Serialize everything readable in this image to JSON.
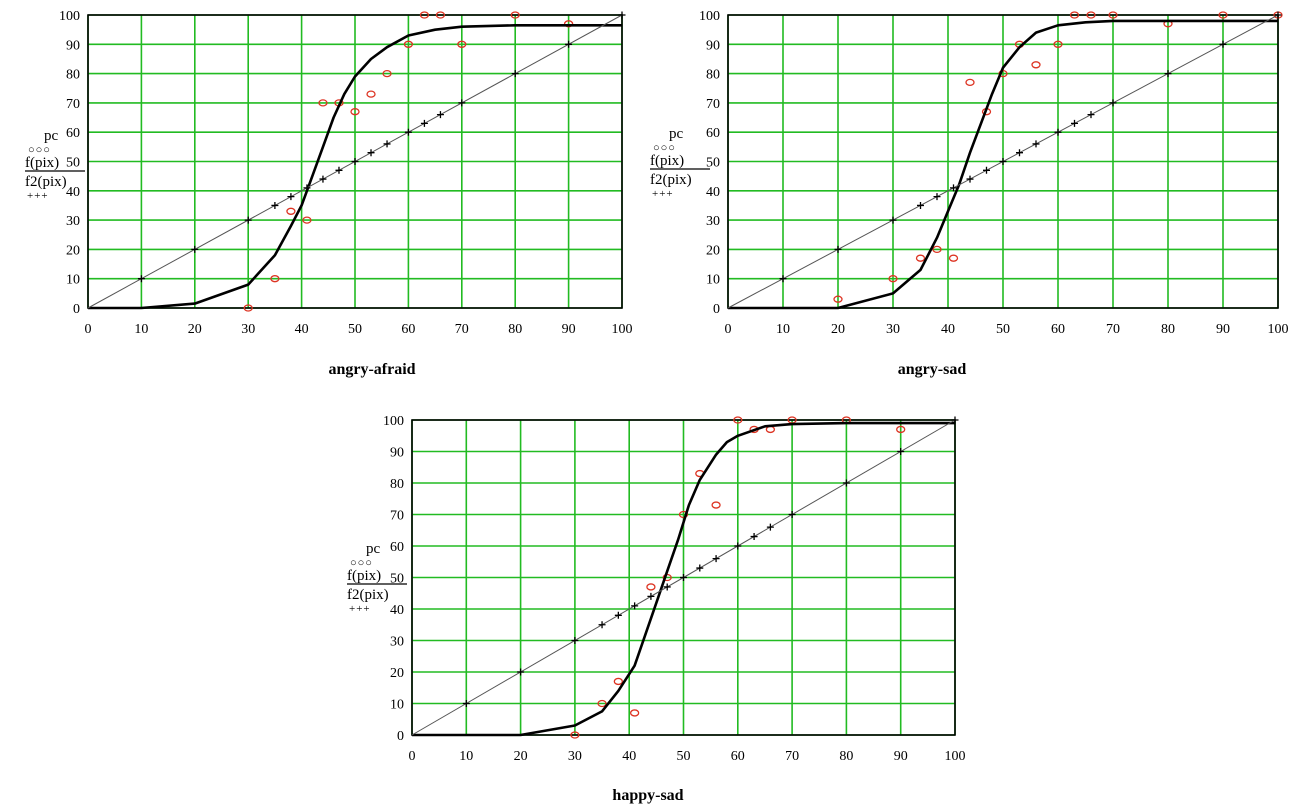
{
  "colors": {
    "grid": "#22bb22",
    "frame": "#000000",
    "sigmoid": "#000000",
    "diagonal": "#555555",
    "markers_pc": "#dd3322",
    "markers_f2": "#000000"
  },
  "legend": {
    "entry_pc": "pc",
    "entry_f": "f(pix)",
    "entry_f2": "f2(pix)",
    "marker_pc": "○○○",
    "marker_f2": "+++"
  },
  "chart_data": [
    {
      "type": "scatter",
      "title": "angry-afraid",
      "xlim": [
        0,
        100
      ],
      "ylim": [
        0,
        100
      ],
      "xticks": [
        0,
        10,
        20,
        30,
        40,
        50,
        60,
        70,
        80,
        90,
        100
      ],
      "yticks": [
        0,
        10,
        20,
        30,
        40,
        50,
        60,
        70,
        80,
        90,
        100
      ],
      "grid": true,
      "series": [
        {
          "name": "pc",
          "marker": "circle",
          "points": [
            [
              30,
              0
            ],
            [
              35,
              10
            ],
            [
              38,
              33
            ],
            [
              41,
              30
            ],
            [
              44,
              70
            ],
            [
              47,
              70
            ],
            [
              50,
              67
            ],
            [
              53,
              73
            ],
            [
              56,
              80
            ],
            [
              60,
              90
            ],
            [
              63,
              100
            ],
            [
              66,
              100
            ],
            [
              70,
              90
            ],
            [
              80,
              100
            ],
            [
              90,
              97
            ]
          ]
        },
        {
          "name": "f(pix)",
          "marker": "line",
          "points": [
            [
              0,
              0
            ],
            [
              10,
              0
            ],
            [
              20,
              1.5
            ],
            [
              30,
              8
            ],
            [
              35,
              18
            ],
            [
              38,
              28
            ],
            [
              40,
              35
            ],
            [
              42,
              45
            ],
            [
              44,
              55
            ],
            [
              46,
              65
            ],
            [
              48,
              73
            ],
            [
              50,
              79
            ],
            [
              53,
              85
            ],
            [
              56,
              89
            ],
            [
              60,
              93
            ],
            [
              65,
              95
            ],
            [
              70,
              96
            ],
            [
              80,
              96.5
            ],
            [
              90,
              96.5
            ],
            [
              100,
              96.5
            ]
          ]
        },
        {
          "name": "f2(pix)",
          "marker": "plus",
          "points": [
            [
              10,
              10
            ],
            [
              20,
              20
            ],
            [
              30,
              30
            ],
            [
              35,
              35
            ],
            [
              38,
              38
            ],
            [
              41,
              41
            ],
            [
              44,
              44
            ],
            [
              47,
              47
            ],
            [
              50,
              50
            ],
            [
              53,
              53
            ],
            [
              56,
              56
            ],
            [
              60,
              60
            ],
            [
              63,
              63
            ],
            [
              66,
              66
            ],
            [
              70,
              70
            ],
            [
              80,
              80
            ],
            [
              90,
              90
            ],
            [
              100,
              100
            ]
          ]
        }
      ]
    },
    {
      "type": "scatter",
      "title": "angry-sad",
      "xlim": [
        0,
        100
      ],
      "ylim": [
        0,
        100
      ],
      "xticks": [
        0,
        10,
        20,
        30,
        40,
        50,
        60,
        70,
        80,
        90,
        100
      ],
      "yticks": [
        0,
        10,
        20,
        30,
        40,
        50,
        60,
        70,
        80,
        90,
        100
      ],
      "grid": true,
      "series": [
        {
          "name": "pc",
          "marker": "circle",
          "points": [
            [
              20,
              3
            ],
            [
              30,
              10
            ],
            [
              35,
              17
            ],
            [
              38,
              20
            ],
            [
              41,
              17
            ],
            [
              44,
              77
            ],
            [
              47,
              67
            ],
            [
              50,
              80
            ],
            [
              53,
              90
            ],
            [
              56,
              83
            ],
            [
              60,
              90
            ],
            [
              63,
              100
            ],
            [
              66,
              100
            ],
            [
              70,
              100
            ],
            [
              80,
              97
            ],
            [
              90,
              100
            ],
            [
              100,
              100
            ]
          ]
        },
        {
          "name": "f(pix)",
          "marker": "line",
          "points": [
            [
              0,
              0
            ],
            [
              10,
              0
            ],
            [
              20,
              0
            ],
            [
              30,
              5
            ],
            [
              35,
              13
            ],
            [
              38,
              24
            ],
            [
              40,
              33
            ],
            [
              42,
              42
            ],
            [
              44,
              53
            ],
            [
              46,
              63
            ],
            [
              48,
              73
            ],
            [
              50,
              82
            ],
            [
              53,
              89
            ],
            [
              56,
              94
            ],
            [
              60,
              96.5
            ],
            [
              65,
              97.5
            ],
            [
              70,
              98
            ],
            [
              80,
              98
            ],
            [
              90,
              98
            ],
            [
              100,
              98
            ]
          ]
        },
        {
          "name": "f2(pix)",
          "marker": "plus",
          "points": [
            [
              10,
              10
            ],
            [
              20,
              20
            ],
            [
              30,
              30
            ],
            [
              35,
              35
            ],
            [
              38,
              38
            ],
            [
              41,
              41
            ],
            [
              44,
              44
            ],
            [
              47,
              47
            ],
            [
              50,
              50
            ],
            [
              53,
              53
            ],
            [
              56,
              56
            ],
            [
              60,
              60
            ],
            [
              63,
              63
            ],
            [
              66,
              66
            ],
            [
              70,
              70
            ],
            [
              80,
              80
            ],
            [
              90,
              90
            ],
            [
              100,
              100
            ]
          ]
        }
      ]
    },
    {
      "type": "scatter",
      "title": "happy-sad",
      "xlim": [
        0,
        100
      ],
      "ylim": [
        0,
        100
      ],
      "xticks": [
        0,
        10,
        20,
        30,
        40,
        50,
        60,
        70,
        80,
        90,
        100
      ],
      "yticks": [
        0,
        10,
        20,
        30,
        40,
        50,
        60,
        70,
        80,
        90,
        100
      ],
      "grid": true,
      "series": [
        {
          "name": "pc",
          "marker": "circle",
          "points": [
            [
              30,
              0
            ],
            [
              35,
              10
            ],
            [
              38,
              17
            ],
            [
              41,
              7
            ],
            [
              44,
              47
            ],
            [
              47,
              50
            ],
            [
              50,
              70
            ],
            [
              53,
              83
            ],
            [
              56,
              73
            ],
            [
              60,
              100
            ],
            [
              63,
              97
            ],
            [
              66,
              97
            ],
            [
              70,
              100
            ],
            [
              80,
              100
            ],
            [
              90,
              97
            ]
          ]
        },
        {
          "name": "f(pix)",
          "marker": "line",
          "points": [
            [
              0,
              0
            ],
            [
              10,
              0
            ],
            [
              20,
              0
            ],
            [
              30,
              3
            ],
            [
              35,
              7.5
            ],
            [
              38,
              14
            ],
            [
              41,
              22
            ],
            [
              43,
              32
            ],
            [
              45,
              42
            ],
            [
              47,
              52
            ],
            [
              49,
              62
            ],
            [
              51,
              73
            ],
            [
              53,
              81
            ],
            [
              56,
              89
            ],
            [
              58,
              93
            ],
            [
              60,
              95
            ],
            [
              65,
              98
            ],
            [
              70,
              98.7
            ],
            [
              80,
              99
            ],
            [
              90,
              99
            ],
            [
              100,
              99
            ]
          ]
        },
        {
          "name": "f2(pix)",
          "marker": "plus",
          "points": [
            [
              10,
              10
            ],
            [
              20,
              20
            ],
            [
              30,
              30
            ],
            [
              35,
              35
            ],
            [
              38,
              38
            ],
            [
              41,
              41
            ],
            [
              44,
              44
            ],
            [
              47,
              47
            ],
            [
              50,
              50
            ],
            [
              53,
              53
            ],
            [
              56,
              56
            ],
            [
              60,
              60
            ],
            [
              63,
              63
            ],
            [
              66,
              66
            ],
            [
              70,
              70
            ],
            [
              80,
              80
            ],
            [
              90,
              90
            ],
            [
              100,
              100
            ]
          ]
        }
      ]
    }
  ]
}
